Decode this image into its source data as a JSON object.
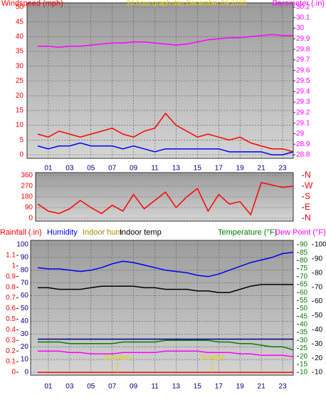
{
  "chart_data": [
    {
      "type": "line",
      "title": "24 hour graph day  December 09 2020",
      "x": [
        0,
        1,
        2,
        3,
        4,
        5,
        6,
        7,
        8,
        9,
        10,
        11,
        12,
        13,
        14,
        15,
        16,
        17,
        18,
        19,
        20,
        21,
        22,
        23,
        24
      ],
      "xlim": [
        -1,
        24
      ],
      "xticks": [
        {
          "value": 1,
          "label": "01"
        },
        {
          "value": 3,
          "label": "03"
        },
        {
          "value": 5,
          "label": "05"
        },
        {
          "value": 7,
          "label": "07"
        },
        {
          "value": 9,
          "label": "09"
        },
        {
          "value": 11,
          "label": "11"
        },
        {
          "value": 13,
          "label": "13"
        },
        {
          "value": 15,
          "label": "15"
        },
        {
          "value": 17,
          "label": "17"
        },
        {
          "value": 19,
          "label": "19"
        },
        {
          "value": 21,
          "label": "21"
        },
        {
          "value": 23,
          "label": "23"
        }
      ],
      "ylim": [
        0,
        50
      ],
      "yticks": [
        0,
        5,
        10,
        15,
        20,
        25,
        30,
        35,
        40,
        45,
        50
      ],
      "y2lim": [
        28.8,
        30.2
      ],
      "y2ticks": [
        28.8,
        28.9,
        29,
        29.1,
        29.2,
        29.3,
        29.4,
        29.5,
        29.6,
        29.7,
        29.8,
        29.9,
        30,
        30.1,
        30.2
      ],
      "grid": true,
      "series": [
        {
          "name": "Windspeed (mph)",
          "color": "#ff0000",
          "values": [
            7,
            6,
            8,
            7,
            6,
            7,
            8,
            9,
            7,
            6,
            8,
            9,
            14,
            10,
            8,
            6,
            7,
            6,
            5,
            6,
            4,
            3,
            2,
            2,
            1
          ]
        },
        {
          "color": "#0000ff",
          "values": [
            3,
            2,
            3,
            3,
            4,
            3,
            3,
            3,
            2,
            3,
            2,
            1,
            2,
            2,
            2,
            2,
            2,
            2,
            1,
            1,
            1,
            1,
            0,
            0,
            1
          ]
        },
        {
          "name": "Barometer (.in)",
          "color": "#ff00ff",
          "axis": "y2",
          "values": [
            29.83,
            29.83,
            29.82,
            29.83,
            29.83,
            29.84,
            29.85,
            29.86,
            29.86,
            29.87,
            29.87,
            29.86,
            29.85,
            29.84,
            29.85,
            29.87,
            29.89,
            29.9,
            29.91,
            29.91,
            29.92,
            29.93,
            29.94,
            29.93,
            29.93
          ]
        }
      ]
    },
    {
      "type": "line",
      "x": [
        0,
        1,
        2,
        3,
        4,
        5,
        6,
        7,
        8,
        9,
        10,
        11,
        12,
        13,
        14,
        15,
        16,
        17,
        18,
        19,
        20,
        21,
        22,
        23,
        24
      ],
      "xlim": [
        -1,
        24
      ],
      "ylim": [
        0,
        360
      ],
      "yticks": [
        0,
        90,
        180,
        270,
        360
      ],
      "y2lim": [
        0,
        360
      ],
      "y2ticks": [
        {
          "value": 360,
          "label": "N"
        },
        {
          "value": 270,
          "label": "W"
        },
        {
          "value": 180,
          "label": "S"
        },
        {
          "value": 90,
          "label": "E"
        },
        {
          "value": 0,
          "label": "N"
        }
      ],
      "grid": true,
      "series": [
        {
          "color": "#ff0000",
          "values": [
            120,
            60,
            40,
            80,
            150,
            90,
            40,
            110,
            60,
            200,
            80,
            150,
            220,
            90,
            180,
            250,
            60,
            200,
            120,
            140,
            30,
            300,
            280,
            260,
            270
          ]
        }
      ]
    },
    {
      "type": "line",
      "x": [
        0,
        1,
        2,
        3,
        4,
        5,
        6,
        7,
        8,
        9,
        10,
        11,
        12,
        13,
        14,
        15,
        16,
        17,
        18,
        19,
        20,
        21,
        22,
        23,
        24
      ],
      "xlim": [
        -1,
        24
      ],
      "xticks": [
        {
          "value": 1,
          "label": "01"
        },
        {
          "value": 3,
          "label": "03"
        },
        {
          "value": 5,
          "label": "05"
        },
        {
          "value": 7,
          "label": "07"
        },
        {
          "value": 9,
          "label": "09"
        },
        {
          "value": 11,
          "label": "11"
        },
        {
          "value": 13,
          "label": "13"
        },
        {
          "value": 15,
          "label": "15"
        },
        {
          "value": 17,
          "label": "17"
        },
        {
          "value": 19,
          "label": "19"
        },
        {
          "value": 21,
          "label": "21"
        },
        {
          "value": 23,
          "label": "23"
        }
      ],
      "ylim": [
        0,
        1.2
      ],
      "yticks": [
        0,
        0.1,
        0.2,
        0.3,
        0.4,
        0.5,
        0.6,
        0.7,
        0.8,
        0.9,
        1,
        1.1
      ],
      "y2lim": [
        10,
        90
      ],
      "y2ticks": [
        10,
        15,
        20,
        25,
        30,
        35,
        40,
        45,
        50,
        55,
        60,
        65,
        70,
        75,
        80,
        85,
        90
      ],
      "y3lim": [
        0,
        100
      ],
      "y3ticks": [
        0,
        10,
        20,
        30,
        40,
        50,
        60,
        70,
        80,
        90,
        100
      ],
      "y4lim": [
        10,
        100
      ],
      "y4ticks": [
        10,
        20,
        30,
        40,
        50,
        60,
        70,
        80,
        90,
        100
      ],
      "grid": true,
      "annotations": [
        {
          "text": "SunRise",
          "x": 7.5
        },
        {
          "text": "SunSet",
          "x": 16.4
        }
      ],
      "series": [
        {
          "name": "Rainfall (.in)",
          "color": "#ff0000",
          "values": [
            0,
            0,
            0,
            0,
            0,
            0,
            0,
            0,
            0,
            0,
            0,
            0,
            0,
            0,
            0,
            0,
            0,
            0,
            0,
            0,
            0,
            0,
            0,
            0,
            0
          ]
        },
        {
          "name": "Humidity",
          "color": "#0000ee",
          "axis": "y3",
          "values": [
            82,
            81,
            81,
            80,
            79,
            80,
            82,
            85,
            87,
            86,
            84,
            82,
            80,
            79,
            78,
            76,
            75,
            77,
            80,
            83,
            86,
            88,
            90,
            93,
            94
          ]
        },
        {
          "name": "Indoor hum",
          "color": "#000080",
          "label_color": "#a08c00",
          "axis": "y3",
          "values": [
            26,
            26,
            26,
            26,
            26,
            26,
            26,
            26,
            26,
            26,
            26,
            26,
            26,
            26,
            26,
            26,
            26,
            26,
            26,
            26,
            26,
            26,
            26,
            26,
            26
          ]
        },
        {
          "name": "Indoor temp",
          "color": "#000000",
          "axis": "y2",
          "values": [
            63,
            63,
            62,
            62,
            62,
            63,
            64,
            64,
            64,
            64,
            63,
            63,
            62,
            62,
            62,
            61,
            61,
            60,
            60,
            62,
            64,
            65,
            65,
            65,
            65
          ]
        },
        {
          "name": "Temperature (°F)",
          "color": "#008000",
          "axis": "y2",
          "values": [
            29,
            29,
            29,
            28,
            28,
            28,
            28,
            28,
            29,
            29,
            29,
            29,
            30,
            30,
            30,
            30,
            30,
            29,
            29,
            28,
            28,
            27,
            26,
            26,
            24
          ]
        },
        {
          "name": "Dew Point (°F)",
          "color": "#ff00ff",
          "axis": "y4",
          "values": [
            25,
            25,
            25,
            24,
            24,
            23,
            23,
            23,
            24,
            24,
            24,
            24,
            25,
            25,
            25,
            25,
            24,
            24,
            24,
            23,
            23,
            22,
            22,
            22,
            21
          ]
        }
      ]
    }
  ]
}
